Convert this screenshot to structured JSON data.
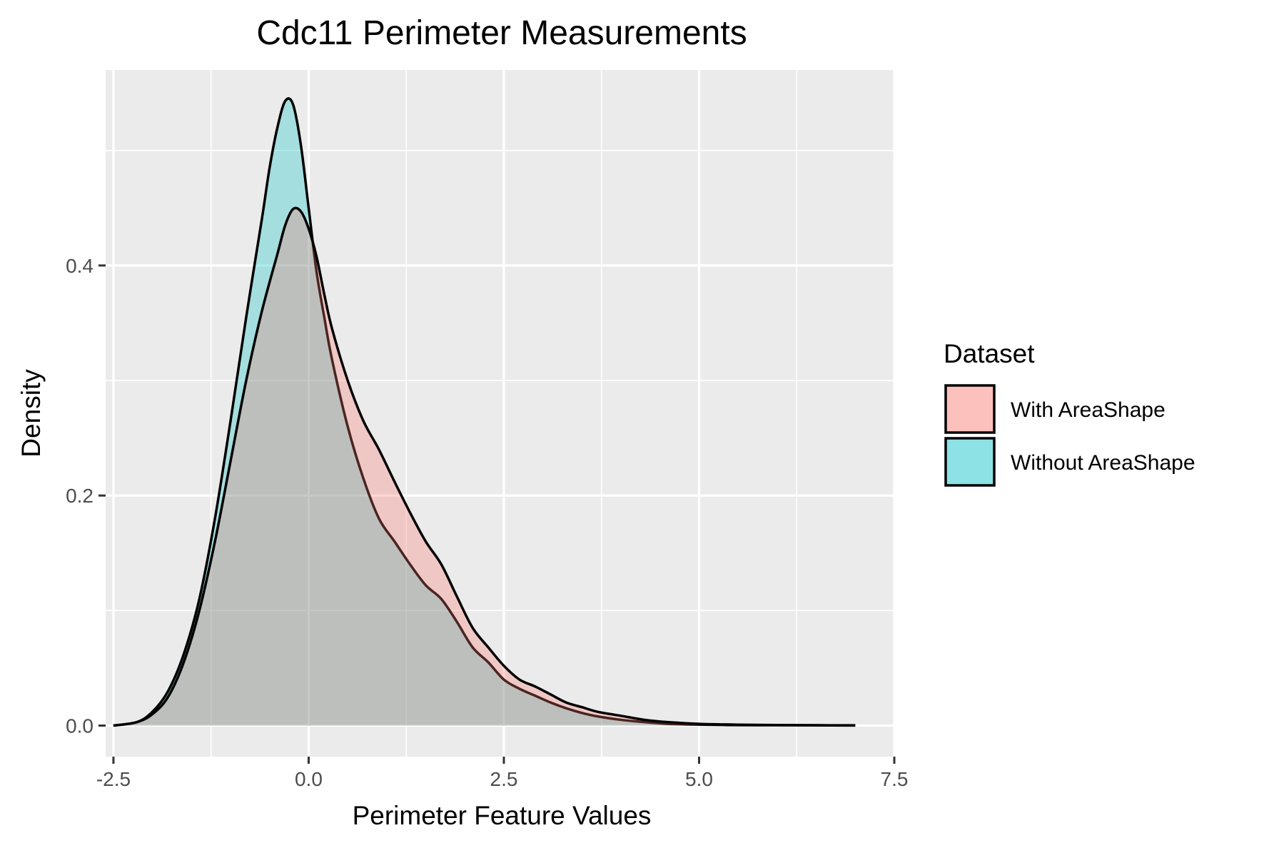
{
  "chart_data": {
    "type": "area",
    "title": "Cdc11 Perimeter Measurements",
    "xlabel": "Perimeter Feature Values",
    "ylabel": "Density",
    "xlim": [
      -2.6,
      7.5
    ],
    "ylim": [
      -0.027,
      0.57
    ],
    "x_ticks": [
      -2.5,
      0.0,
      2.5,
      5.0,
      7.5
    ],
    "x_tick_labels": [
      "-2.5",
      "0.0",
      "2.5",
      "5.0",
      "7.5"
    ],
    "y_ticks": [
      0.0,
      0.2,
      0.4
    ],
    "y_tick_labels": [
      "0.0",
      "0.2",
      "0.4"
    ],
    "grid": true,
    "legend": {
      "title": "Dataset",
      "position": "right"
    },
    "series": [
      {
        "name": "With AreaShape",
        "color": "#F8766D",
        "x": [
          -2.5,
          -2.2,
          -2.0,
          -1.8,
          -1.6,
          -1.4,
          -1.2,
          -1.0,
          -0.8,
          -0.6,
          -0.4,
          -0.3,
          -0.2,
          -0.1,
          0.0,
          0.1,
          0.2,
          0.3,
          0.5,
          0.7,
          0.9,
          1.1,
          1.3,
          1.5,
          1.7,
          1.9,
          2.1,
          2.3,
          2.5,
          2.7,
          2.9,
          3.1,
          3.3,
          3.5,
          3.7,
          4.0,
          4.3,
          4.6,
          5.0,
          5.5,
          6.0,
          6.5,
          7.0
        ],
        "y": [
          0.0,
          0.003,
          0.01,
          0.025,
          0.055,
          0.1,
          0.16,
          0.23,
          0.3,
          0.36,
          0.41,
          0.435,
          0.449,
          0.447,
          0.432,
          0.408,
          0.375,
          0.345,
          0.3,
          0.265,
          0.24,
          0.212,
          0.185,
          0.16,
          0.14,
          0.112,
          0.085,
          0.068,
          0.052,
          0.04,
          0.034,
          0.027,
          0.02,
          0.016,
          0.012,
          0.0085,
          0.005,
          0.003,
          0.0015,
          0.0008,
          0.0005,
          0.0003,
          0.0002
        ]
      },
      {
        "name": "Without AreaShape",
        "color": "#00BFC4",
        "x": [
          -2.5,
          -2.2,
          -2.0,
          -1.8,
          -1.6,
          -1.4,
          -1.2,
          -1.0,
          -0.8,
          -0.6,
          -0.5,
          -0.4,
          -0.3,
          -0.2,
          -0.1,
          0.0,
          0.1,
          0.2,
          0.3,
          0.5,
          0.7,
          0.9,
          1.1,
          1.3,
          1.5,
          1.7,
          1.9,
          2.1,
          2.3,
          2.5,
          2.7,
          2.9,
          3.1,
          3.3,
          3.5,
          3.7,
          4.0,
          4.3,
          4.6,
          5.0,
          5.5,
          6.0,
          6.5,
          7.0
        ],
        "y": [
          0.0,
          0.003,
          0.012,
          0.03,
          0.062,
          0.11,
          0.18,
          0.265,
          0.355,
          0.44,
          0.485,
          0.52,
          0.543,
          0.54,
          0.505,
          0.45,
          0.395,
          0.355,
          0.318,
          0.26,
          0.215,
          0.18,
          0.16,
          0.14,
          0.122,
          0.11,
          0.09,
          0.068,
          0.055,
          0.04,
          0.032,
          0.026,
          0.02,
          0.015,
          0.011,
          0.008,
          0.005,
          0.003,
          0.0015,
          0.0008,
          0.0004,
          0.0003,
          0.0002,
          0.0001
        ]
      }
    ]
  }
}
